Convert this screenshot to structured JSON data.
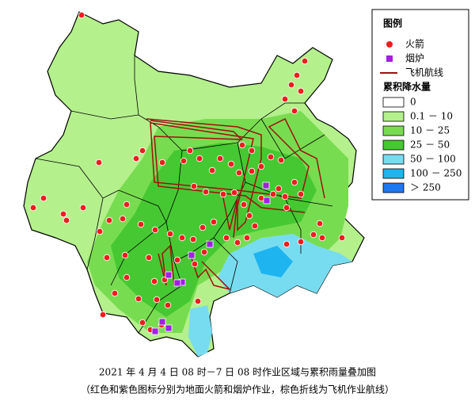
{
  "legend": {
    "title": "图例",
    "markers": [
      {
        "label": "火箭",
        "color": "#ee1c1c"
      },
      {
        "label": "烟炉",
        "color": "#a020e0"
      },
      {
        "label": "飞机航线",
        "color": "#a01010"
      }
    ],
    "rain_title": "累积降水量",
    "rain_classes": [
      {
        "label": "0",
        "color": "#ffffff"
      },
      {
        "label": "0.1 － 10",
        "color": "#b4f08c"
      },
      {
        "label": "10 － 25",
        "color": "#78dc50"
      },
      {
        "label": "25 － 50",
        "color": "#46c832"
      },
      {
        "label": "50 － 100",
        "color": "#78dcf0"
      },
      {
        "label": "100 － 250",
        "color": "#1eb4f0"
      },
      {
        "label": "＞ 250",
        "color": "#1e78f0"
      }
    ]
  },
  "caption": {
    "line1": "2021 年 4 月 4 日 08 时－7 日 08 时作业区域与累积雨量叠加图",
    "line2": "（红色和紫色图标分别为地面火箭和烟炉作业，棕色折线为飞机作业航线）"
  }
}
